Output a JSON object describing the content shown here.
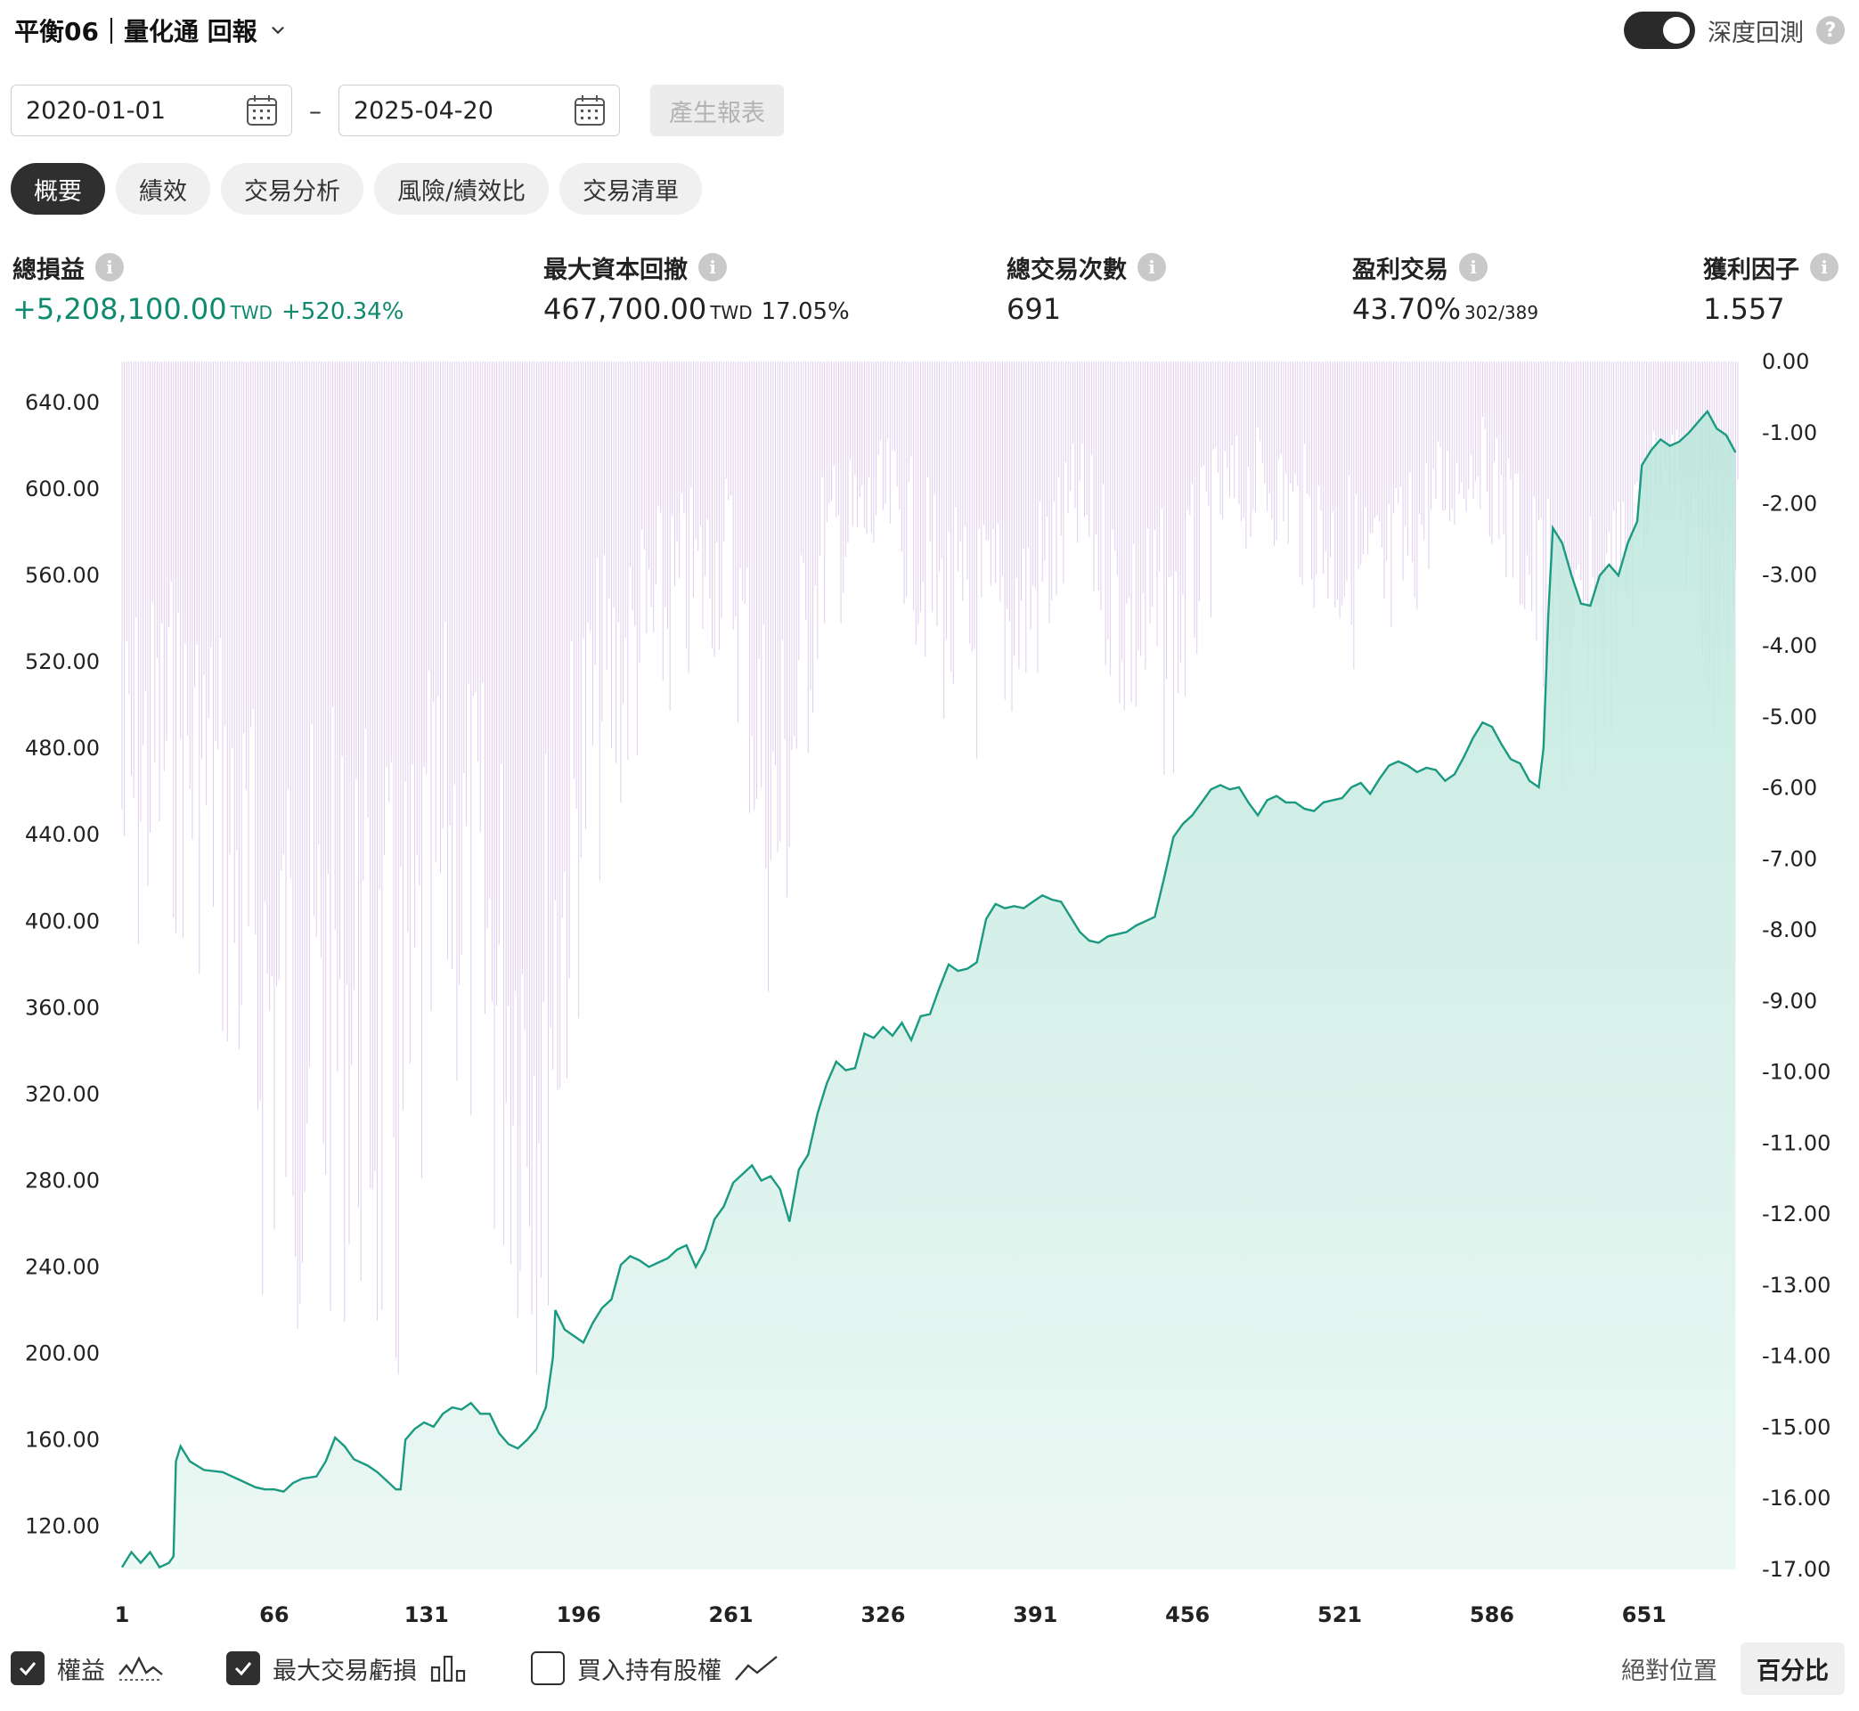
{
  "header": {
    "title": "平衡06｜量化通 回報"
  },
  "deep_backtest": {
    "label": "深度回測",
    "enabled": true
  },
  "date_range": {
    "start": "2020-01-01",
    "separator": "–",
    "end": "2025-04-20",
    "generate_label": "產生報表"
  },
  "tabs": [
    {
      "label": "概要",
      "active": true
    },
    {
      "label": "績效",
      "active": false
    },
    {
      "label": "交易分析",
      "active": false
    },
    {
      "label": "風險/績效比",
      "active": false
    },
    {
      "label": "交易清單",
      "active": false
    }
  ],
  "stats": {
    "total_pnl": {
      "label": "總損益",
      "value": "+5,208,100.00",
      "unit": "TWD",
      "pct": "+520.34%"
    },
    "max_drawdown": {
      "label": "最大資本回撤",
      "value": "467,700.00",
      "unit": "TWD",
      "pct": "17.05%"
    },
    "total_trades": {
      "label": "總交易次數",
      "value": "691"
    },
    "win_trades": {
      "label": "盈利交易",
      "value": "43.70%",
      "ratio": "302/389"
    },
    "profit_factor": {
      "label": "獲利因子",
      "value": "1.557"
    }
  },
  "chart_data": {
    "type": "area",
    "x_ticks": [
      "1",
      "66",
      "131",
      "196",
      "261",
      "326",
      "391",
      "456",
      "521",
      "586",
      "651"
    ],
    "y_left_ticks": [
      "640.00",
      "600.00",
      "560.00",
      "520.00",
      "480.00",
      "440.00",
      "400.00",
      "360.00",
      "320.00",
      "280.00",
      "240.00",
      "200.00",
      "160.00",
      "120.00"
    ],
    "y_right_ticks": [
      "0.00",
      "-1.00",
      "-2.00",
      "-3.00",
      "-4.00",
      "-5.00",
      "-6.00",
      "-7.00",
      "-8.00",
      "-9.00",
      "-10.00",
      "-11.00",
      "-12.00",
      "-13.00",
      "-14.00",
      "-15.00",
      "-16.00",
      "-17.00"
    ],
    "y_left_range": [
      100,
      659
    ],
    "y_right_range": [
      -17,
      0
    ],
    "x_range": [
      1,
      691
    ],
    "equity_series": {
      "name": "權益",
      "color": "#1a9a80",
      "points": [
        [
          1,
          101
        ],
        [
          5,
          108
        ],
        [
          9,
          103
        ],
        [
          13,
          108
        ],
        [
          17,
          101
        ],
        [
          21,
          103
        ],
        [
          23,
          106
        ],
        [
          24,
          150
        ],
        [
          26,
          157
        ],
        [
          30,
          150
        ],
        [
          36,
          146
        ],
        [
          44,
          145
        ],
        [
          52,
          141
        ],
        [
          58,
          138
        ],
        [
          62,
          137
        ],
        [
          66,
          137
        ],
        [
          70,
          136
        ],
        [
          74,
          140
        ],
        [
          78,
          142
        ],
        [
          84,
          143
        ],
        [
          88,
          150
        ],
        [
          92,
          161
        ],
        [
          96,
          157
        ],
        [
          100,
          151
        ],
        [
          106,
          148
        ],
        [
          110,
          145
        ],
        [
          114,
          141
        ],
        [
          118,
          137
        ],
        [
          120,
          137
        ],
        [
          122,
          160
        ],
        [
          126,
          165
        ],
        [
          130,
          168
        ],
        [
          134,
          166
        ],
        [
          138,
          172
        ],
        [
          142,
          175
        ],
        [
          146,
          174
        ],
        [
          150,
          177
        ],
        [
          154,
          172
        ],
        [
          158,
          172
        ],
        [
          162,
          163
        ],
        [
          166,
          158
        ],
        [
          170,
          156
        ],
        [
          174,
          160
        ],
        [
          178,
          165
        ],
        [
          182,
          175
        ],
        [
          185,
          198
        ],
        [
          186,
          220
        ],
        [
          190,
          211
        ],
        [
          194,
          208
        ],
        [
          198,
          205
        ],
        [
          202,
          214
        ],
        [
          206,
          221
        ],
        [
          210,
          225
        ],
        [
          214,
          241
        ],
        [
          218,
          245
        ],
        [
          222,
          243
        ],
        [
          226,
          240
        ],
        [
          230,
          242
        ],
        [
          234,
          244
        ],
        [
          238,
          248
        ],
        [
          242,
          250
        ],
        [
          246,
          240
        ],
        [
          250,
          248
        ],
        [
          254,
          262
        ],
        [
          258,
          268
        ],
        [
          262,
          279
        ],
        [
          266,
          283
        ],
        [
          270,
          287
        ],
        [
          274,
          280
        ],
        [
          278,
          282
        ],
        [
          282,
          276
        ],
        [
          286,
          261
        ],
        [
          290,
          285
        ],
        [
          294,
          292
        ],
        [
          298,
          311
        ],
        [
          302,
          325
        ],
        [
          306,
          335
        ],
        [
          310,
          331
        ],
        [
          314,
          332
        ],
        [
          318,
          348
        ],
        [
          322,
          346
        ],
        [
          326,
          351
        ],
        [
          330,
          347
        ],
        [
          334,
          353
        ],
        [
          338,
          345
        ],
        [
          342,
          356
        ],
        [
          346,
          357
        ],
        [
          350,
          369
        ],
        [
          354,
          380
        ],
        [
          358,
          377
        ],
        [
          362,
          378
        ],
        [
          366,
          381
        ],
        [
          370,
          401
        ],
        [
          374,
          408
        ],
        [
          378,
          406
        ],
        [
          382,
          407
        ],
        [
          386,
          406
        ],
        [
          390,
          409
        ],
        [
          394,
          412
        ],
        [
          398,
          410
        ],
        [
          402,
          409
        ],
        [
          406,
          402
        ],
        [
          410,
          395
        ],
        [
          414,
          391
        ],
        [
          418,
          390
        ],
        [
          422,
          393
        ],
        [
          426,
          394
        ],
        [
          430,
          395
        ],
        [
          434,
          398
        ],
        [
          438,
          400
        ],
        [
          442,
          402
        ],
        [
          446,
          420
        ],
        [
          450,
          439
        ],
        [
          454,
          445
        ],
        [
          458,
          449
        ],
        [
          462,
          455
        ],
        [
          466,
          461
        ],
        [
          470,
          463
        ],
        [
          474,
          461
        ],
        [
          478,
          462
        ],
        [
          482,
          455
        ],
        [
          486,
          449
        ],
        [
          490,
          456
        ],
        [
          494,
          458
        ],
        [
          498,
          455
        ],
        [
          502,
          455
        ],
        [
          506,
          452
        ],
        [
          510,
          451
        ],
        [
          514,
          455
        ],
        [
          518,
          456
        ],
        [
          522,
          457
        ],
        [
          526,
          462
        ],
        [
          530,
          464
        ],
        [
          534,
          459
        ],
        [
          538,
          466
        ],
        [
          542,
          472
        ],
        [
          546,
          474
        ],
        [
          550,
          472
        ],
        [
          554,
          469
        ],
        [
          558,
          471
        ],
        [
          562,
          470
        ],
        [
          566,
          465
        ],
        [
          570,
          468
        ],
        [
          574,
          476
        ],
        [
          578,
          485
        ],
        [
          582,
          492
        ],
        [
          586,
          490
        ],
        [
          590,
          482
        ],
        [
          594,
          475
        ],
        [
          598,
          473
        ],
        [
          602,
          465
        ],
        [
          606,
          462
        ],
        [
          608,
          480
        ],
        [
          610,
          541
        ],
        [
          612,
          582
        ],
        [
          616,
          575
        ],
        [
          620,
          560
        ],
        [
          624,
          547
        ],
        [
          628,
          546
        ],
        [
          632,
          560
        ],
        [
          636,
          565
        ],
        [
          640,
          560
        ],
        [
          644,
          575
        ],
        [
          648,
          585
        ],
        [
          650,
          611
        ],
        [
          654,
          618
        ],
        [
          658,
          623
        ],
        [
          662,
          620
        ],
        [
          666,
          622
        ],
        [
          670,
          626
        ],
        [
          674,
          631
        ],
        [
          678,
          636
        ],
        [
          682,
          628
        ],
        [
          686,
          625
        ],
        [
          690,
          617
        ]
      ]
    },
    "drawdown_series": {
      "name": "最大交易虧損",
      "color": "#b88fd9"
    },
    "buy_hold_series": {
      "name": "買入持有股權",
      "visible": false
    }
  },
  "legend": {
    "equity": {
      "label": "權益",
      "checked": true
    },
    "max_loss": {
      "label": "最大交易虧損",
      "checked": true
    },
    "buy_hold": {
      "label": "買入持有股權",
      "checked": false
    }
  },
  "scale_modes": {
    "absolute": "絕對位置",
    "percent": "百分比",
    "selected": "percent"
  }
}
